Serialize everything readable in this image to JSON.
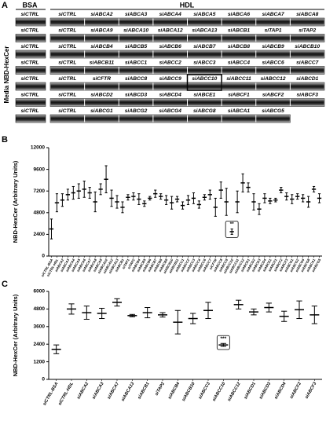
{
  "panel_a": {
    "panel_label": "A",
    "y_label": "Media NBD-HexCer",
    "bsa_header": "BSA",
    "hdl_header": "HDL",
    "highlight": "siABCC10",
    "rows": [
      {
        "labels": [
          "siCTRL",
          "siCTRL",
          "siABCA2",
          "siABCA3",
          "siABCA4",
          "siABCA5",
          "siABCA6",
          "siABCA7",
          "siABCA8"
        ]
      },
      {
        "labels": [
          "siCTRL",
          "siCTRL",
          "siABCA9",
          "siABCA10",
          "siABCA12",
          "siABCA13",
          "siABCB1",
          "siTAP1",
          "siTAP2"
        ]
      },
      {
        "labels": [
          "siCTRL",
          "siCTRL",
          "siABCB4",
          "siABCB5",
          "siABCB6",
          "siABCB7",
          "siABCB8",
          "siABCB9",
          "siABCB10"
        ]
      },
      {
        "labels": [
          "siCTRL",
          "siCTRL",
          "siABCB11",
          "siABCC1",
          "siABCC2",
          "siABCC3",
          "siABCC4",
          "siABCC6",
          "siABCC7"
        ]
      },
      {
        "labels": [
          "siCTRL",
          "siCTRL",
          "siCFTR",
          "siABCC8",
          "siABCC9",
          "siABCC10",
          "siABCC11",
          "siABCC12",
          "siABCD1"
        ]
      },
      {
        "labels": [
          "siCTRL",
          "siCTRL",
          "siABCD2",
          "siABCD3",
          "siABCD4",
          "siABCE1",
          "siABCF1",
          "siABCF2",
          "siABCF3"
        ]
      },
      {
        "labels": [
          "siCTRL",
          "siCTRL",
          "siABCG1",
          "siABCG2",
          "siABCG4",
          "siABCG8",
          "siABCA1",
          "siABCG5"
        ]
      }
    ]
  },
  "chart_data": [
    {
      "type": "errorbar",
      "panel_label": "B",
      "y_label": "NBD-HexCer (Arbitrary Units)",
      "color": "#000000",
      "categories": [
        "siCTRL-BSA",
        "siCTRL-HDL",
        "siABCA2",
        "siABCA3",
        "siABCA4",
        "siABCA5",
        "siABCA6",
        "siABCA7",
        "siABCA8",
        "siABCA9",
        "siABCA10",
        "siABCA12",
        "siABCA13",
        "siABCB1",
        "siTAP1",
        "siTAP2",
        "siABCB4",
        "siABCB5",
        "siABCB6",
        "siABCB7",
        "siABCB8",
        "siABCB9",
        "siABCB10",
        "siABCB11",
        "siABCC1",
        "siABCC2",
        "siABCC3",
        "siABCC4",
        "siABCC6",
        "siABCC7",
        "siCFTR",
        "siABCC8",
        "siABCC9",
        "siABCC10",
        "siABCC11",
        "siABCC12",
        "siABCD1",
        "siABCD2",
        "siABCD3",
        "siABCD4",
        "siABCE1",
        "siABCF1",
        "siABCF2",
        "siABCF3",
        "siABCG1",
        "siABCG2",
        "siABCG4",
        "siABCG8",
        "siABCA1",
        "siABCG5"
      ],
      "values": [
        3000,
        5900,
        6200,
        6800,
        7000,
        7200,
        7400,
        7000,
        6000,
        7400,
        8500,
        6400,
        6000,
        5400,
        6500,
        6600,
        6300,
        5800,
        6400,
        6900,
        6600,
        6200,
        5900,
        6300,
        5600,
        6200,
        6400,
        5700,
        6500,
        6800,
        5400,
        7300,
        6000,
        2700,
        6000,
        8100,
        7600,
        6000,
        5200,
        6400,
        6100,
        6200,
        7300,
        6600,
        6300,
        6600,
        6400,
        6000,
        7400,
        6400
      ],
      "errors": [
        1100,
        1000,
        700,
        600,
        700,
        800,
        900,
        600,
        1100,
        600,
        1500,
        900,
        700,
        600,
        300,
        400,
        600,
        300,
        200,
        400,
        300,
        500,
        700,
        300,
        400,
        500,
        600,
        400,
        300,
        500,
        1000,
        900,
        1500,
        300,
        1200,
        1000,
        500,
        900,
        600,
        500,
        300,
        200,
        300,
        400,
        500,
        300,
        400,
        600,
        300,
        500
      ],
      "ylim": [
        0,
        12000
      ],
      "yticks": [
        0,
        2400,
        4800,
        7200,
        9600,
        12000
      ],
      "annotations": [
        {
          "text": "**",
          "category": "siABCC10"
        }
      ]
    },
    {
      "type": "errorbar",
      "panel_label": "C",
      "y_label": "NBD-HexCer (Arbitrary Units)",
      "color": "#000000",
      "categories": [
        "siCTRL-BSA",
        "siCTRL-HDL",
        "siABCA2",
        "siABCA3",
        "siABCA7",
        "siABCA13",
        "siABCB1",
        "siTAP2",
        "siABCB4",
        "siABCB10",
        "siABCC3",
        "siABCC10",
        "siABCC12",
        "siABCD1",
        "siABCD3",
        "siABCD4",
        "siABCF2",
        "siABCF3"
      ],
      "values": [
        2050,
        4800,
        4550,
        4500,
        5250,
        4350,
        4550,
        4400,
        3900,
        4150,
        4700,
        2350,
        5100,
        4600,
        4900,
        4300,
        4750,
        4400
      ],
      "errors": [
        300,
        350,
        450,
        350,
        250,
        80,
        350,
        150,
        800,
        350,
        550,
        100,
        300,
        200,
        300,
        350,
        600,
        600
      ],
      "ylim": [
        0,
        6000
      ],
      "yticks": [
        0,
        1200,
        2400,
        3600,
        4800,
        6000
      ],
      "annotations": [
        {
          "text": "***",
          "category": "siABCC10"
        }
      ]
    }
  ]
}
